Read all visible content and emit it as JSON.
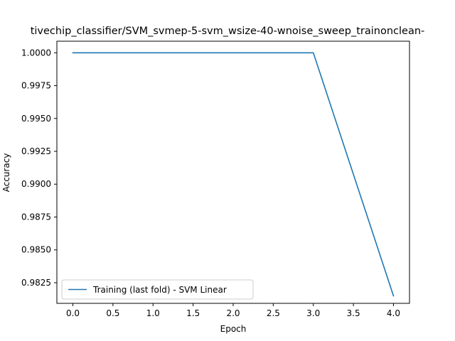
{
  "chart_data": {
    "type": "line",
    "title": "tivechip_classifier/SVM_svmep-5-svm_wsize-40-wnoise_sweep_trainonclean-",
    "xlabel": "Epoch",
    "ylabel": "Accuracy",
    "xlim": [
      -0.2,
      4.2
    ],
    "ylim": [
      0.98093,
      1.00088
    ],
    "x_ticks": [
      0.0,
      0.5,
      1.0,
      1.5,
      2.0,
      2.5,
      3.0,
      3.5,
      4.0
    ],
    "x_tick_labels": [
      "0.0",
      "0.5",
      "1.0",
      "1.5",
      "2.0",
      "2.5",
      "3.0",
      "3.5",
      "4.0"
    ],
    "y_ticks": [
      0.9825,
      0.985,
      0.9875,
      0.99,
      0.9925,
      0.995,
      0.9975,
      1.0
    ],
    "y_tick_labels": [
      "0.9825",
      "0.9850",
      "0.9875",
      "0.9900",
      "0.9925",
      "0.9950",
      "0.9975",
      "1.0000"
    ],
    "grid": false,
    "legend_position": "lower-left",
    "series": [
      {
        "name": "Training (last fold) - SVM Linear",
        "color": "#1f77b4",
        "x": [
          0,
          1,
          2,
          3,
          4
        ],
        "y": [
          1.0,
          1.0,
          1.0,
          1.0,
          0.9815
        ]
      }
    ]
  }
}
